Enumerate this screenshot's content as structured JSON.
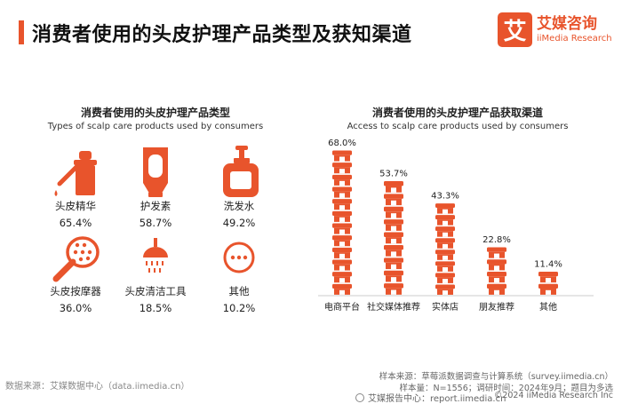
{
  "header": {
    "title": "消费者使用的头皮护理产品类型及获知渠道",
    "brand_mark": "艾",
    "brand_cn": "艾媒咨询",
    "brand_en": "iiMedia Research"
  },
  "left_panel": {
    "title": "消费者使用的头皮护理产品类型",
    "subtitle": "Types of scalp care products used by consumers",
    "items": [
      {
        "label": "头皮精华",
        "value": "65.4%",
        "icon": "serum-dropper-icon"
      },
      {
        "label": "护发素",
        "value": "58.7%",
        "icon": "conditioner-tube-icon"
      },
      {
        "label": "洗发水",
        "value": "49.2%",
        "icon": "shampoo-bottle-icon"
      },
      {
        "label": "头皮按摩器",
        "value": "36.0%",
        "icon": "scalp-massager-brush-icon"
      },
      {
        "label": "头皮清洁工具",
        "value": "18.5%",
        "icon": "shower-head-icon"
      },
      {
        "label": "其他",
        "value": "10.2%",
        "icon": "more-dots-icon"
      }
    ]
  },
  "chart_data": {
    "type": "bar",
    "title": "消费者使用的头皮护理产品获取渠道",
    "subtitle": "Access to scalp care products used by consumers",
    "categories": [
      "电商平台",
      "社交媒体推荐",
      "实体店",
      "朋友推荐",
      "其他"
    ],
    "values": [
      68.0,
      53.7,
      43.3,
      22.8,
      11.4
    ],
    "value_labels": [
      "68.0%",
      "53.7%",
      "43.3%",
      "22.8%",
      "11.4%"
    ],
    "unit": "%",
    "mark": "stacked-store-icons",
    "color": "#e8542c"
  },
  "footer": {
    "source": "数据来源：艾媒数据中心（data.iimedia.cn）",
    "sample_source": "样本来源：草莓派数据调查与计算系统（survey.iimedia.cn）",
    "sample_info": "样本量：N=1556；调研时间：2024年9月；题目为多选",
    "report_text": "艾媒报告中心：report.iimedia.cn",
    "copyright": "©2024  iiMedia Research  Inc"
  }
}
